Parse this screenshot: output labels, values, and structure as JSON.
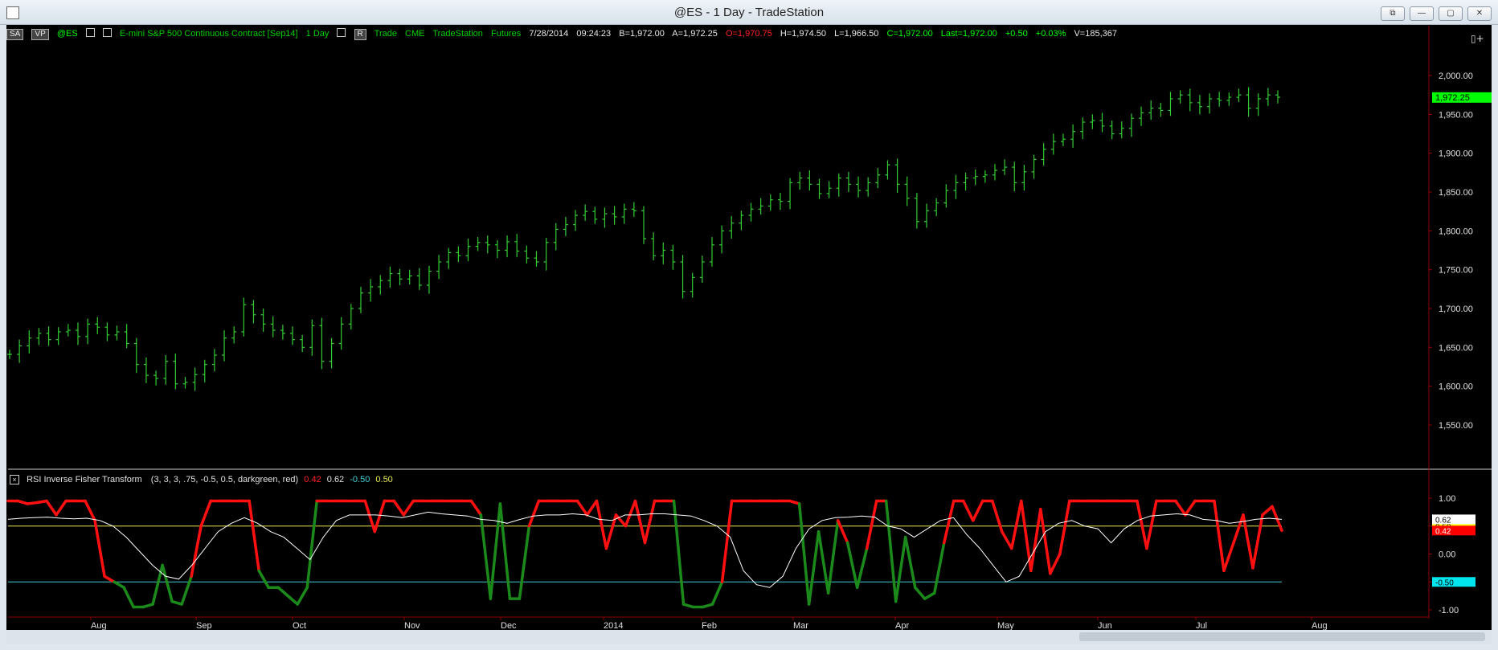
{
  "window": {
    "title": "@ES - 1 Day - TradeStation",
    "buttons": [
      "⧉",
      "—",
      "▢",
      "✕"
    ]
  },
  "symbol_bar": {
    "sa": "SA",
    "vp": "VP",
    "symbol": "@ES",
    "description": "E-mini S&P 500 Continuous Contract [Sep14]",
    "interval": "1 Day",
    "r": "R",
    "mode": "Trade",
    "exchange": "CME",
    "source": "TradeStation",
    "type": "Futures",
    "date": "7/28/2014",
    "time": "09:24:23",
    "bid": "B=1,972.00",
    "ask": "A=1,972.25",
    "open": "O=1,970.75",
    "high": "H=1,974.50",
    "low": "L=1,966.50",
    "close": "C=1,972.00",
    "last": "Last=1,972.00",
    "net_change": "+0.50",
    "pct_change": "+0.03%",
    "volume": "V=185,367"
  },
  "indicator": {
    "name": "RSI Inverse Fisher Transform",
    "params": "(3, 3, 3, .75, -0.5, 0.5, darkgreen, red)",
    "v1": "0.42",
    "v2": "0.62",
    "v3": "-0.50",
    "v4": "0.50"
  },
  "colors": {
    "price_bar": "#33cc33",
    "price_tag": "#00ff00",
    "ift_high": "#ff1010",
    "ift_low": "#1b8a1b",
    "signal": "#ffffff",
    "upper_level": "#e8e850",
    "lower_level": "#40d0d8",
    "grid": "#8b0000"
  },
  "chart_data": [
    {
      "type": "ohlc",
      "title": "@ES - 1 Day",
      "x_ticks": [
        "Aug",
        "Sep",
        "Oct",
        "Nov",
        "Dec",
        "2014",
        "Feb",
        "Mar",
        "Apr",
        "May",
        "Jun",
        "Jul",
        "Aug"
      ],
      "y_ticks": [
        "2,000.00",
        "1,950.00",
        "1,900.00",
        "1,850.00",
        "1,800.00",
        "1,750.00",
        "1,700.00",
        "1,650.00",
        "1,600.00",
        "1,550.00"
      ],
      "ylim": [
        1550,
        2000
      ],
      "last_price": "1,972.25",
      "close_series_approx": [
        1641,
        1652,
        1662,
        1668,
        1660,
        1670,
        1672,
        1664,
        1680,
        1676,
        1666,
        1670,
        1655,
        1628,
        1614,
        1610,
        1632,
        1603,
        1605,
        1615,
        1628,
        1640,
        1662,
        1670,
        1705,
        1692,
        1680,
        1672,
        1668,
        1660,
        1650,
        1678,
        1632,
        1655,
        1680,
        1700,
        1720,
        1728,
        1736,
        1745,
        1738,
        1742,
        1730,
        1748,
        1760,
        1772,
        1768,
        1780,
        1785,
        1782,
        1775,
        1786,
        1774,
        1765,
        1760,
        1785,
        1802,
        1808,
        1820,
        1825,
        1815,
        1822,
        1818,
        1828,
        1826,
        1790,
        1768,
        1775,
        1760,
        1722,
        1740,
        1760,
        1782,
        1800,
        1810,
        1820,
        1828,
        1832,
        1840,
        1838,
        1862,
        1868,
        1860,
        1848,
        1855,
        1868,
        1860,
        1852,
        1862,
        1872,
        1885,
        1860,
        1842,
        1812,
        1826,
        1836,
        1852,
        1862,
        1868,
        1870,
        1872,
        1878,
        1882,
        1862,
        1876,
        1892,
        1905,
        1915,
        1918,
        1928,
        1940,
        1942,
        1935,
        1925,
        1932,
        1945,
        1952,
        1958,
        1955,
        1970,
        1975,
        1965,
        1960,
        1970,
        1968,
        1972,
        1975,
        1958,
        1970,
        1975,
        1972
      ]
    },
    {
      "type": "line",
      "title": "RSI Inverse Fisher Transform",
      "y_ticks": [
        "1.00",
        "0.50",
        "0.00",
        "-0.50",
        "-1.00"
      ],
      "ylim": [
        -1,
        1
      ],
      "levels": [
        {
          "name": "upper",
          "value": 0.5,
          "label": "0.50"
        },
        {
          "name": "lower",
          "value": -0.5,
          "label": "-0.50"
        }
      ],
      "series": [
        {
          "values": [
            0.95,
            0.95,
            0.9,
            0.92,
            0.95,
            0.7,
            0.95,
            0.95,
            0.95,
            0.6,
            -0.4,
            -0.5,
            -0.6,
            -0.95,
            -0.95,
            -0.9,
            -0.2,
            -0.85,
            -0.9,
            -0.4,
            0.5,
            0.95,
            0.95,
            0.95,
            0.95,
            0.95,
            -0.3,
            -0.6,
            -0.6,
            -0.75,
            -0.9,
            -0.6,
            0.95,
            0.95,
            0.95,
            0.95,
            0.95,
            0.95,
            0.4,
            0.95,
            0.95,
            0.7,
            0.95,
            0.95,
            0.95,
            0.95,
            0.95,
            0.95,
            0.95,
            0.7,
            -0.8,
            0.9,
            -0.8,
            -0.8,
            0.5,
            0.95,
            0.95,
            0.95,
            0.95,
            0.95,
            0.7,
            0.95,
            0.1,
            0.7,
            0.5,
            0.95,
            0.2,
            0.95,
            0.95,
            0.95,
            -0.9,
            -0.95,
            -0.95,
            -0.9,
            -0.5,
            0.95,
            0.95,
            0.95,
            0.95,
            0.95,
            0.95,
            0.95,
            0.9,
            -0.9,
            0.4,
            -0.7,
            0.6,
            0.2,
            -0.6,
            0.1,
            0.95,
            0.95,
            -0.85,
            0.3,
            -0.6,
            -0.8,
            -0.7,
            0.2,
            0.95,
            0.95,
            0.6,
            0.95,
            0.95,
            0.4,
            0.1,
            0.95,
            -0.3,
            0.8,
            -0.35,
            0.0,
            0.95,
            0.95,
            0.95,
            0.95,
            0.95,
            0.95,
            0.95,
            0.95,
            0.1,
            0.95,
            0.95,
            0.95,
            0.7,
            0.95,
            0.95,
            0.95,
            -0.3,
            0.2,
            0.7,
            -0.25,
            0.7,
            0.85,
            0.42
          ]
        },
        {
          "values": [
            0.62,
            0.64,
            0.65,
            0.66,
            0.64,
            0.63,
            0.64,
            0.6,
            0.5,
            0.3,
            0.05,
            -0.2,
            -0.4,
            -0.45,
            -0.2,
            0.1,
            0.4,
            0.55,
            0.65,
            0.55,
            0.4,
            0.3,
            0.1,
            -0.1,
            0.3,
            0.6,
            0.7,
            0.7,
            0.7,
            0.68,
            0.65,
            0.7,
            0.75,
            0.72,
            0.7,
            0.68,
            0.62,
            0.6,
            0.55,
            0.62,
            0.68,
            0.7,
            0.7,
            0.72,
            0.7,
            0.62,
            0.6,
            0.7,
            0.7,
            0.72,
            0.72,
            0.7,
            0.68,
            0.6,
            0.5,
            0.3,
            -0.3,
            -0.55,
            -0.6,
            -0.4,
            0.1,
            0.45,
            0.6,
            0.65,
            0.66,
            0.68,
            0.66,
            0.5,
            0.45,
            0.3,
            0.45,
            0.6,
            0.65,
            0.35,
            0.1,
            -0.2,
            -0.5,
            -0.4,
            0.0,
            0.4,
            0.55,
            0.6,
            0.5,
            0.45,
            0.2,
            0.45,
            0.6,
            0.68,
            0.7,
            0.72,
            0.7,
            0.62,
            0.6,
            0.55,
            0.58,
            0.62,
            0.64,
            0.62
          ]
        }
      ]
    }
  ]
}
